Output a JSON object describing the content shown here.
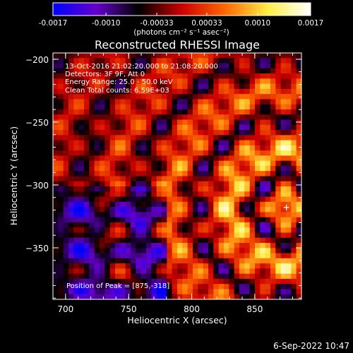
{
  "chart_data": {
    "type": "heatmap",
    "title": "Reconstructed RHESSI Image",
    "xlabel": "Heliocentric X (arcsec)",
    "ylabel": "Heliocentric Y (arcsec)",
    "xlim": [
      690,
      887
    ],
    "ylim": [
      -391,
      -195
    ],
    "xticks": [
      700,
      750,
      800,
      850
    ],
    "yticks": [
      -200,
      -250,
      -300,
      -350
    ],
    "colorbar": {
      "ticks": [
        "-0.0017",
        "-0.0010",
        "-0.00033",
        "0.00033",
        "0.0010",
        "0.0017"
      ],
      "range": [
        -0.0017,
        0.0017
      ],
      "unit_label": "(photons cm⁻² s⁻¹ asec⁻²)",
      "colormap": [
        "#0000ff",
        "#6600cc",
        "#000000",
        "#cc0000",
        "#ff6600",
        "#ffee44",
        "#ffffff"
      ]
    },
    "annotations": [
      "13-Oct-2016 21:02:20.000 to 21:08:20.000",
      "Detectors: 3F 9F, Att 0",
      "Energy Range: 25.0 - 50.0 keV",
      "Clean     Total counts: 6.59E+03"
    ],
    "peak_label": "Position of Peak = [875,-318]",
    "peak": [
      875,
      -318
    ]
  },
  "footer": {
    "timestamp": "6-Sep-2022 10:47"
  }
}
